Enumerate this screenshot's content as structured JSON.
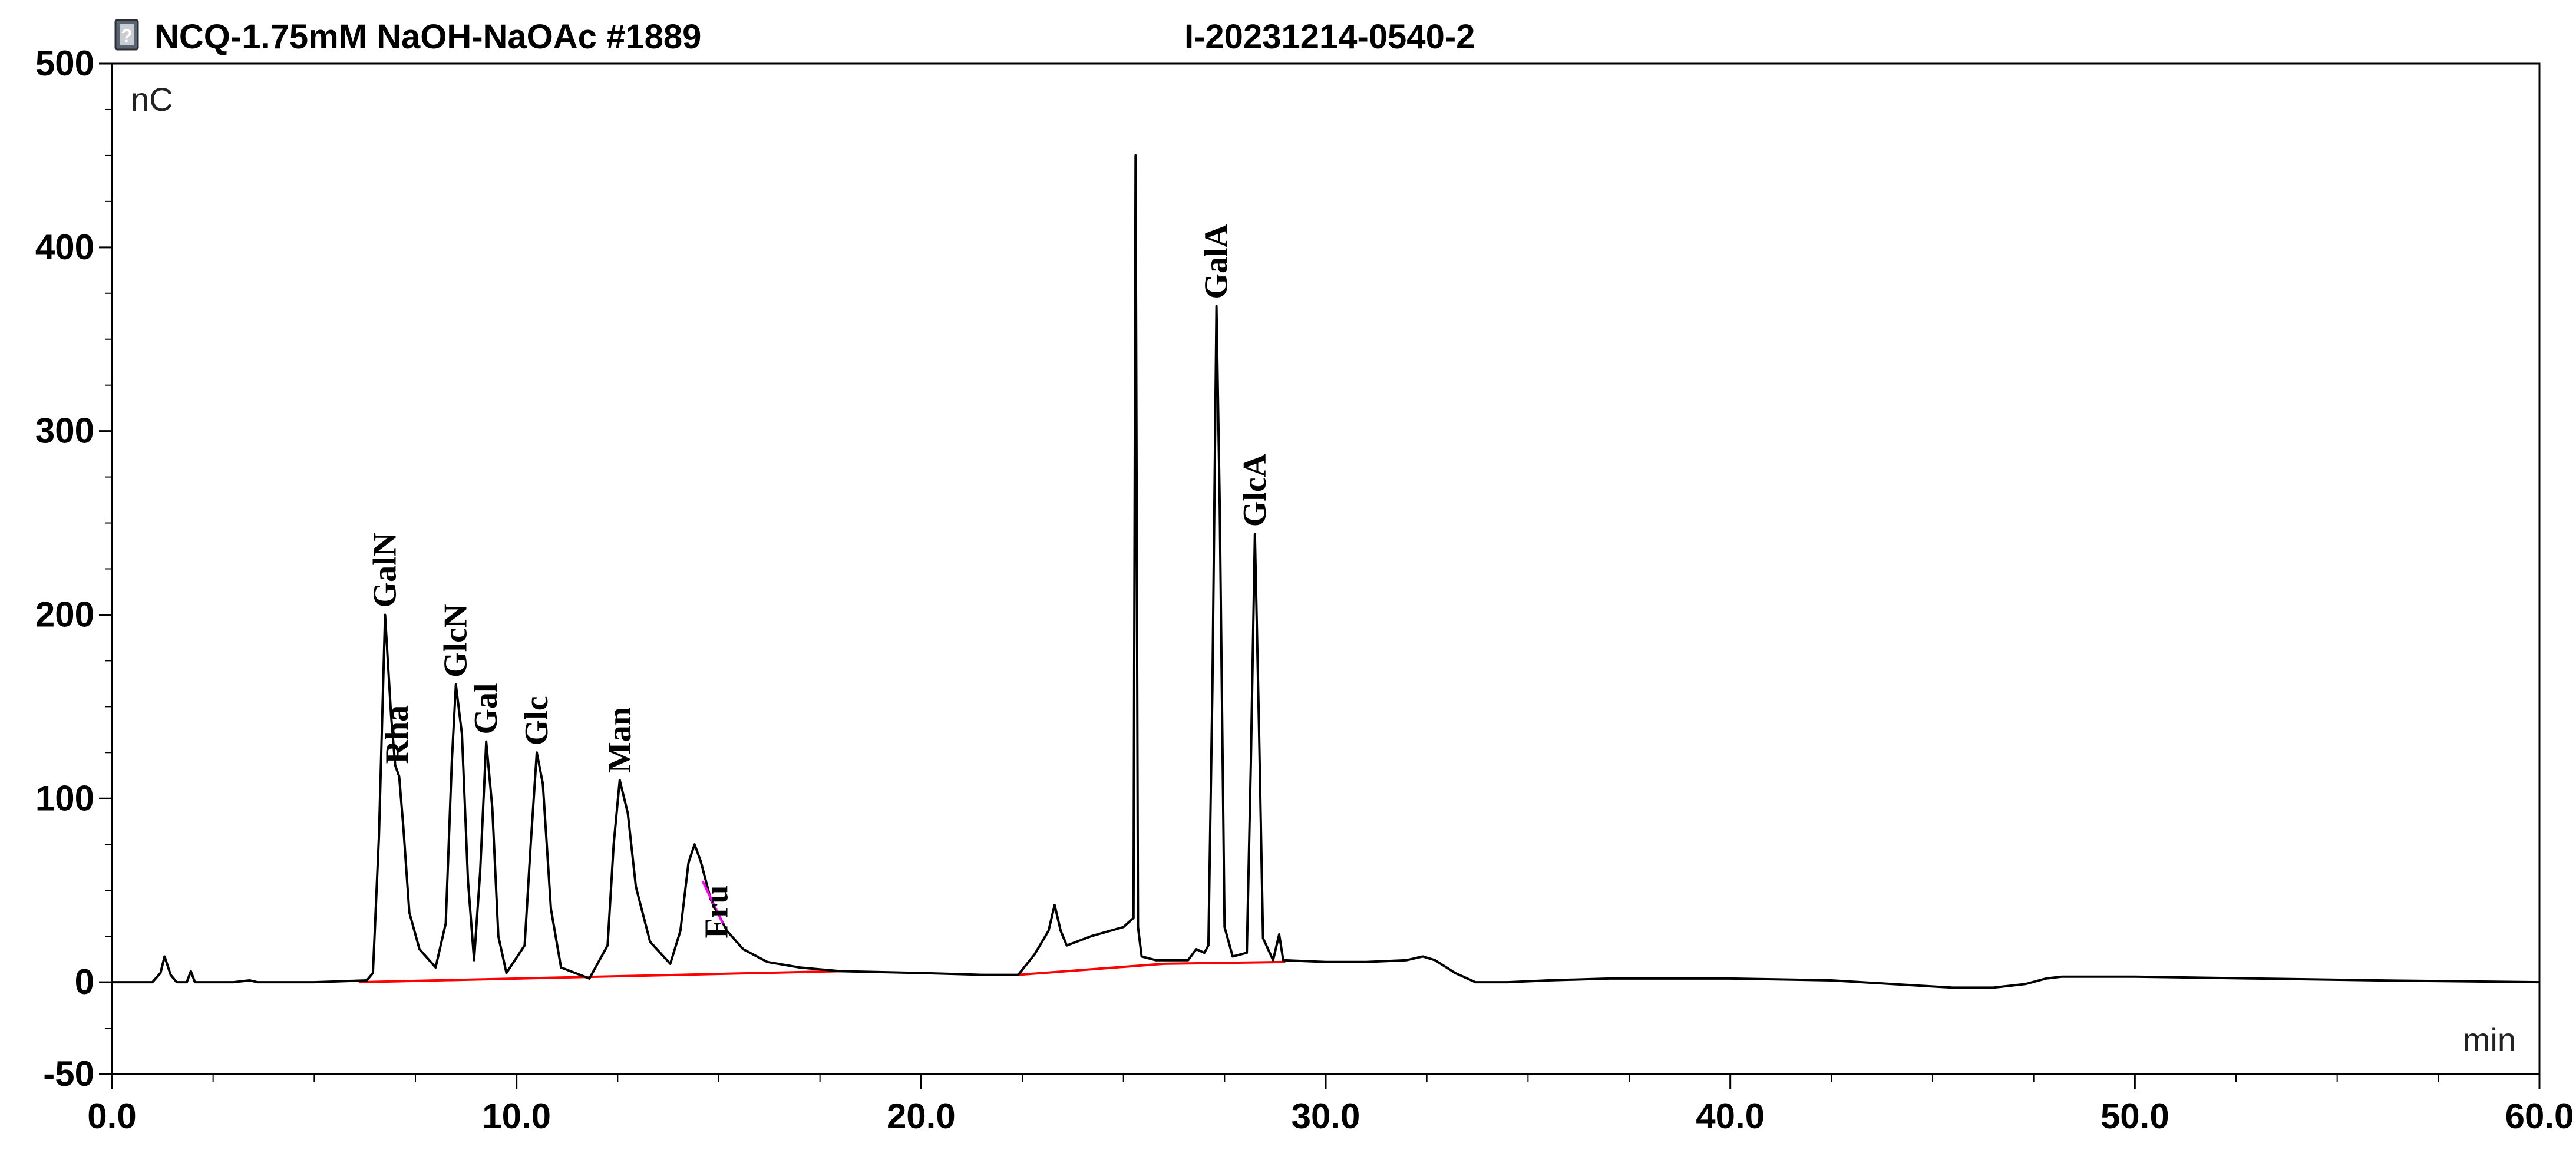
{
  "header": {
    "sample_title": "NCQ-1.75mM NaOH-NaOAc #1889",
    "injection_id": "I-20231214-0540-2",
    "status_icon": "question-document-icon"
  },
  "chart_data": {
    "type": "line",
    "title": "NCQ-1.75mM NaOH-NaOAc #1889",
    "subtitle": "I-20231214-0540-2",
    "y_unit_label": "nC",
    "x_unit_label": "min",
    "xlim": [
      0,
      60
    ],
    "ylim": [
      -50,
      500
    ],
    "x_ticks": [
      "0.0",
      "10.0",
      "20.0",
      "30.0",
      "40.0",
      "50.0",
      "60.0"
    ],
    "x_tick_values": [
      0,
      10,
      20,
      30,
      40,
      50,
      60
    ],
    "y_ticks": [
      "-50",
      "0",
      "100",
      "200",
      "300",
      "400",
      "500"
    ],
    "y_tick_values": [
      -50,
      0,
      100,
      200,
      300,
      400,
      500
    ],
    "grid": false,
    "colors": {
      "trace": "#000000",
      "baseline_segments": "#ff0000",
      "axis": "#000000",
      "highlight": "#ff00ff"
    },
    "series": [
      {
        "points": [
          [
            0,
            0
          ],
          [
            1.0,
            0
          ],
          [
            1.2,
            5
          ],
          [
            1.3,
            14
          ],
          [
            1.45,
            4
          ],
          [
            1.6,
            0
          ],
          [
            1.85,
            0
          ],
          [
            1.95,
            6
          ],
          [
            2.05,
            0
          ],
          [
            3.0,
            0
          ],
          [
            3.4,
            1
          ],
          [
            3.6,
            0
          ],
          [
            5.0,
            0
          ],
          [
            6.3,
            1
          ],
          [
            6.45,
            5
          ],
          [
            6.6,
            80
          ],
          [
            6.75,
            200
          ],
          [
            6.9,
            145
          ],
          [
            7.0,
            118
          ],
          [
            7.1,
            112
          ],
          [
            7.2,
            85
          ],
          [
            7.35,
            38
          ],
          [
            7.6,
            18
          ],
          [
            8.0,
            8
          ],
          [
            8.25,
            32
          ],
          [
            8.4,
            120
          ],
          [
            8.5,
            162
          ],
          [
            8.65,
            135
          ],
          [
            8.8,
            55
          ],
          [
            8.95,
            12
          ],
          [
            9.1,
            60
          ],
          [
            9.25,
            131
          ],
          [
            9.4,
            95
          ],
          [
            9.55,
            25
          ],
          [
            9.75,
            5
          ],
          [
            10.2,
            20
          ],
          [
            10.35,
            75
          ],
          [
            10.5,
            125
          ],
          [
            10.65,
            108
          ],
          [
            10.85,
            40
          ],
          [
            11.1,
            8
          ],
          [
            11.8,
            2
          ],
          [
            12.25,
            20
          ],
          [
            12.4,
            75
          ],
          [
            12.55,
            110
          ],
          [
            12.75,
            92
          ],
          [
            12.95,
            52
          ],
          [
            13.3,
            22
          ],
          [
            13.8,
            10
          ],
          [
            14.05,
            28
          ],
          [
            14.25,
            65
          ],
          [
            14.4,
            75
          ],
          [
            14.55,
            66
          ],
          [
            14.8,
            45
          ],
          [
            15.2,
            28
          ],
          [
            15.6,
            18
          ],
          [
            16.2,
            11
          ],
          [
            17.0,
            8
          ],
          [
            18.0,
            6
          ],
          [
            20.0,
            5
          ],
          [
            21.5,
            4
          ],
          [
            22.4,
            4
          ],
          [
            22.8,
            15
          ],
          [
            23.15,
            28
          ],
          [
            23.3,
            42
          ],
          [
            23.45,
            28
          ],
          [
            23.6,
            20
          ],
          [
            24.2,
            25
          ],
          [
            25.0,
            30
          ],
          [
            25.25,
            35
          ],
          [
            25.3,
            450
          ],
          [
            25.36,
            30
          ],
          [
            25.45,
            14
          ],
          [
            25.8,
            12
          ],
          [
            26.6,
            12
          ],
          [
            26.8,
            18
          ],
          [
            27.0,
            16
          ],
          [
            27.1,
            20
          ],
          [
            27.2,
            160
          ],
          [
            27.3,
            368
          ],
          [
            27.38,
            260
          ],
          [
            27.5,
            30
          ],
          [
            27.7,
            14
          ],
          [
            28.05,
            16
          ],
          [
            28.15,
            120
          ],
          [
            28.25,
            244
          ],
          [
            28.35,
            140
          ],
          [
            28.45,
            24
          ],
          [
            28.7,
            12
          ],
          [
            28.85,
            26
          ],
          [
            28.95,
            12
          ],
          [
            30.0,
            11
          ],
          [
            31.0,
            11
          ],
          [
            32.0,
            12
          ],
          [
            32.4,
            14
          ],
          [
            32.7,
            12
          ],
          [
            33.2,
            5
          ],
          [
            33.7,
            0
          ],
          [
            34.5,
            0
          ],
          [
            35.5,
            1
          ],
          [
            37.0,
            2
          ],
          [
            40.0,
            2
          ],
          [
            42.5,
            1
          ],
          [
            44.0,
            -1
          ],
          [
            45.5,
            -3
          ],
          [
            46.5,
            -3
          ],
          [
            47.3,
            -1
          ],
          [
            47.8,
            2
          ],
          [
            48.2,
            3
          ],
          [
            50.0,
            3
          ],
          [
            53.0,
            2
          ],
          [
            56.0,
            1
          ],
          [
            60.0,
            0
          ]
        ]
      }
    ],
    "baseline_segments": [
      [
        [
          6.1,
          0
        ],
        [
          18.0,
          6
        ]
      ],
      [
        [
          22.4,
          4
        ],
        [
          26.0,
          10
        ]
      ],
      [
        [
          26.0,
          10
        ],
        [
          29.0,
          11
        ]
      ]
    ],
    "highlight_segment": [
      [
        14.6,
        55
      ],
      [
        15.1,
        32
      ]
    ],
    "peak_annotations": [
      {
        "label": "GalN",
        "rt": 6.75,
        "y": 200
      },
      {
        "label": "Rha",
        "rt": 7.05,
        "y": 115
      },
      {
        "label": "GlcN",
        "rt": 8.5,
        "y": 162
      },
      {
        "label": "Gal",
        "rt": 9.25,
        "y": 131
      },
      {
        "label": "Glc",
        "rt": 10.5,
        "y": 125
      },
      {
        "label": "Man",
        "rt": 12.55,
        "y": 110
      },
      {
        "label": "Fru",
        "rt": 14.95,
        "y": 20
      },
      {
        "label": "GalA",
        "rt": 27.3,
        "y": 368
      },
      {
        "label": "GlcA",
        "rt": 28.25,
        "y": 244
      }
    ]
  }
}
